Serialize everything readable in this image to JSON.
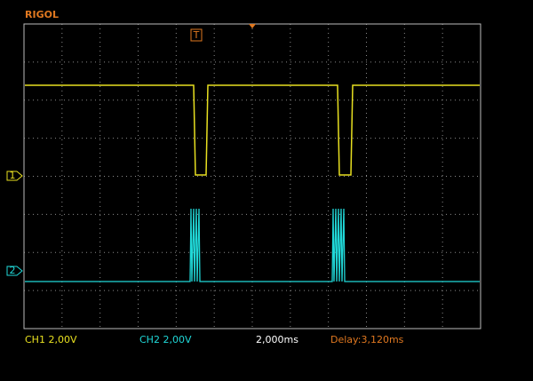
{
  "header": {
    "brand": "RIGOL"
  },
  "markers": {
    "trigger": "T",
    "ch1": "1",
    "ch2": "2"
  },
  "status": {
    "ch1": "CH1 2,00V",
    "ch2": "CH2 2,00V",
    "timebase": "2,000ms",
    "delay": "Delay:3,120ms"
  }
}
